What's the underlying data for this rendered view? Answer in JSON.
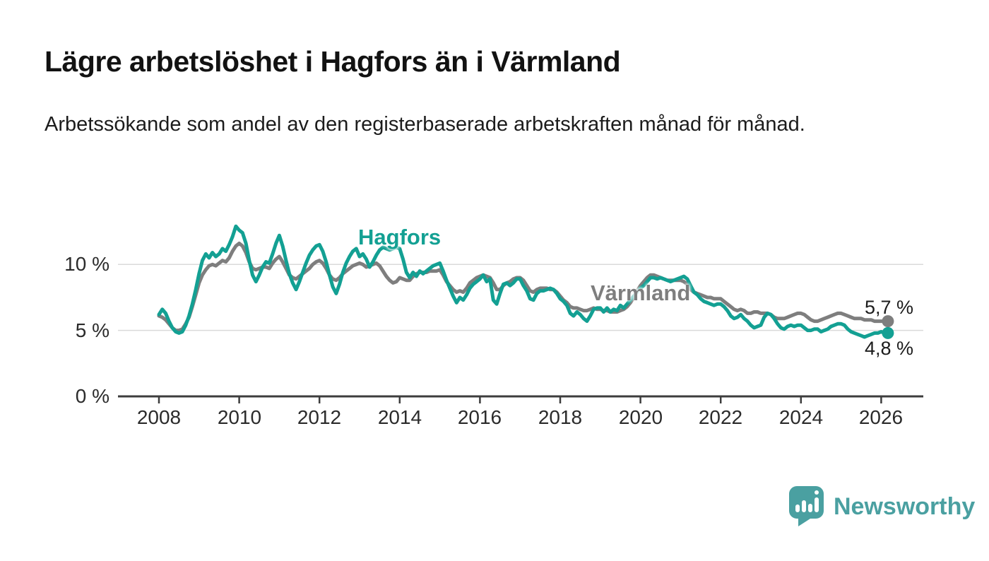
{
  "header": {
    "title": "Lägre arbetslöshet i Hagfors än i Värmland",
    "subtitle": "Arbetssökande som andel av den registerbaserade arbetskraften månad för månad."
  },
  "chart_data": {
    "type": "line",
    "title": "Lägre arbetslöshet i Hagfors än i Värmland",
    "xlabel": "",
    "ylabel": "",
    "x_start": "2008-01",
    "x_end": "2026-03",
    "points_per_year": 12,
    "grid": "horizontal",
    "legend_position": "inline-labels",
    "grid_color": "#dadada",
    "axis_color": "#3d3d3d",
    "ylim": [
      0,
      13.8
    ],
    "y_axis": {
      "ticks": [
        {
          "value": 0,
          "label": "0 %"
        },
        {
          "value": 5,
          "label": "5 %"
        },
        {
          "value": 10,
          "label": "10 %"
        }
      ]
    },
    "x_axis": {
      "ticks": [
        {
          "year": 2008,
          "label": "2008"
        },
        {
          "year": 2010,
          "label": "2010"
        },
        {
          "year": 2012,
          "label": "2012"
        },
        {
          "year": 2014,
          "label": "2014"
        },
        {
          "year": 2016,
          "label": "2016"
        },
        {
          "year": 2018,
          "label": "2018"
        },
        {
          "year": 2020,
          "label": "2020"
        },
        {
          "year": 2022,
          "label": "2022"
        },
        {
          "year": 2024,
          "label": "2024"
        },
        {
          "year": 2026,
          "label": "2026"
        }
      ]
    },
    "series": [
      {
        "name": "Hagfors",
        "color": "#13a093",
        "end_label": "4,8 %",
        "end_value": 4.8,
        "values": [
          6.2,
          6.6,
          6.3,
          5.7,
          5.2,
          4.9,
          4.8,
          4.9,
          5.4,
          6.1,
          7.0,
          8.1,
          9.3,
          10.3,
          10.8,
          10.5,
          10.9,
          10.6,
          10.8,
          11.2,
          11.0,
          11.5,
          12.1,
          12.9,
          12.6,
          12.4,
          11.6,
          10.3,
          9.2,
          8.7,
          9.2,
          9.8,
          10.2,
          10.1,
          10.8,
          11.6,
          12.2,
          11.4,
          10.3,
          9.3,
          8.6,
          8.1,
          8.7,
          9.4,
          10.1,
          10.7,
          11.1,
          11.4,
          11.5,
          11.0,
          10.2,
          9.2,
          8.3,
          7.8,
          8.5,
          9.4,
          10.1,
          10.6,
          11.0,
          11.2,
          10.6,
          10.8,
          10.4,
          9.8,
          10.2,
          10.7,
          11.1,
          11.3,
          11.2,
          11.1,
          11.2,
          11.3,
          11.2,
          10.4,
          9.4,
          9.0,
          9.4,
          9.1,
          9.5,
          9.3,
          9.5,
          9.7,
          9.9,
          10.0,
          10.1,
          9.5,
          8.8,
          8.2,
          7.6,
          7.1,
          7.5,
          7.3,
          7.7,
          8.2,
          8.5,
          8.7,
          8.9,
          9.2,
          8.7,
          8.9,
          7.3,
          7.0,
          7.8,
          8.5,
          8.6,
          8.4,
          8.6,
          8.9,
          8.9,
          8.4,
          8.0,
          7.4,
          7.3,
          7.8,
          8.0,
          8.0,
          8.1,
          8.2,
          8.1,
          7.8,
          7.4,
          7.2,
          6.9,
          6.3,
          6.1,
          6.4,
          6.2,
          5.9,
          5.7,
          6.1,
          6.6,
          6.7,
          6.7,
          6.4,
          6.7,
          6.4,
          6.6,
          6.5,
          6.9,
          6.7,
          7.0,
          7.3,
          7.6,
          7.9,
          8.2,
          8.4,
          8.7,
          9.0,
          9.0,
          8.9,
          9.0,
          8.9,
          8.8,
          8.7,
          8.8,
          8.9,
          9.0,
          9.1,
          8.9,
          8.4,
          7.9,
          7.7,
          7.4,
          7.2,
          7.1,
          7.0,
          6.9,
          7.0,
          7.0,
          6.8,
          6.5,
          6.1,
          5.9,
          6.0,
          6.2,
          5.9,
          5.7,
          5.4,
          5.2,
          5.3,
          5.4,
          6.0,
          6.3,
          6.2,
          5.9,
          5.5,
          5.2,
          5.1,
          5.3,
          5.4,
          5.3,
          5.4,
          5.4,
          5.2,
          5.0,
          5.0,
          5.1,
          5.1,
          4.9,
          5.0,
          5.1,
          5.3,
          5.4,
          5.5,
          5.5,
          5.4,
          5.1,
          4.9,
          4.8,
          4.7,
          4.6,
          4.5,
          4.6,
          4.7,
          4.8,
          4.8,
          4.9,
          4.8,
          4.8
        ]
      },
      {
        "name": "Värmland",
        "color": "#7e7e7e",
        "end_label": "5,7 %",
        "end_value": 5.7,
        "values": [
          6.1,
          6.0,
          5.8,
          5.5,
          5.2,
          5.0,
          5.0,
          5.1,
          5.5,
          6.0,
          6.8,
          7.7,
          8.6,
          9.2,
          9.6,
          9.9,
          10.0,
          9.9,
          10.1,
          10.3,
          10.2,
          10.5,
          11.0,
          11.4,
          11.6,
          11.4,
          10.9,
          10.2,
          9.7,
          9.6,
          9.7,
          9.8,
          9.8,
          9.7,
          10.1,
          10.4,
          10.6,
          10.2,
          9.7,
          9.2,
          9.0,
          8.9,
          9.1,
          9.3,
          9.5,
          9.7,
          10.0,
          10.2,
          10.3,
          10.1,
          9.7,
          9.2,
          8.9,
          8.8,
          9.0,
          9.3,
          9.5,
          9.7,
          9.9,
          10.0,
          10.1,
          10.0,
          9.8,
          9.9,
          10.0,
          10.1,
          9.9,
          9.5,
          9.1,
          8.8,
          8.6,
          8.7,
          9.0,
          8.9,
          8.8,
          8.8,
          9.1,
          9.3,
          9.4,
          9.4,
          9.4,
          9.5,
          9.5,
          9.5,
          9.6,
          9.2,
          8.7,
          8.4,
          8.1,
          7.9,
          8.0,
          7.9,
          8.2,
          8.6,
          8.8,
          9.0,
          9.1,
          9.2,
          9.1,
          9.0,
          8.6,
          8.1,
          8.1,
          8.4,
          8.6,
          8.7,
          8.9,
          9.0,
          9.0,
          8.8,
          8.4,
          8.0,
          7.9,
          8.1,
          8.2,
          8.2,
          8.2,
          8.1,
          8.1,
          7.9,
          7.6,
          7.3,
          7.1,
          6.8,
          6.7,
          6.7,
          6.6,
          6.5,
          6.5,
          6.6,
          6.7,
          6.6,
          6.6,
          6.5,
          6.5,
          6.4,
          6.4,
          6.4,
          6.5,
          6.6,
          6.8,
          7.1,
          7.5,
          8.0,
          8.4,
          8.7,
          9.0,
          9.2,
          9.2,
          9.1,
          9.0,
          8.9,
          8.8,
          8.8,
          8.8,
          8.8,
          8.8,
          8.7,
          8.5,
          8.1,
          7.9,
          7.8,
          7.7,
          7.6,
          7.5,
          7.5,
          7.4,
          7.4,
          7.4,
          7.2,
          7.0,
          6.8,
          6.6,
          6.5,
          6.6,
          6.5,
          6.3,
          6.3,
          6.4,
          6.4,
          6.3,
          6.3,
          6.3,
          6.2,
          6.0,
          5.9,
          5.9,
          5.9,
          6.0,
          6.1,
          6.2,
          6.3,
          6.3,
          6.2,
          6.0,
          5.8,
          5.7,
          5.7,
          5.8,
          5.9,
          6.0,
          6.1,
          6.2,
          6.3,
          6.3,
          6.2,
          6.1,
          6.0,
          5.9,
          5.9,
          5.9,
          5.8,
          5.8,
          5.8,
          5.7,
          5.7,
          5.7,
          5.7,
          5.7
        ]
      }
    ]
  },
  "logo": {
    "text": "Newsworthy",
    "color": "#4aa0a1",
    "mark": "speech-bubble-bar-chart"
  }
}
